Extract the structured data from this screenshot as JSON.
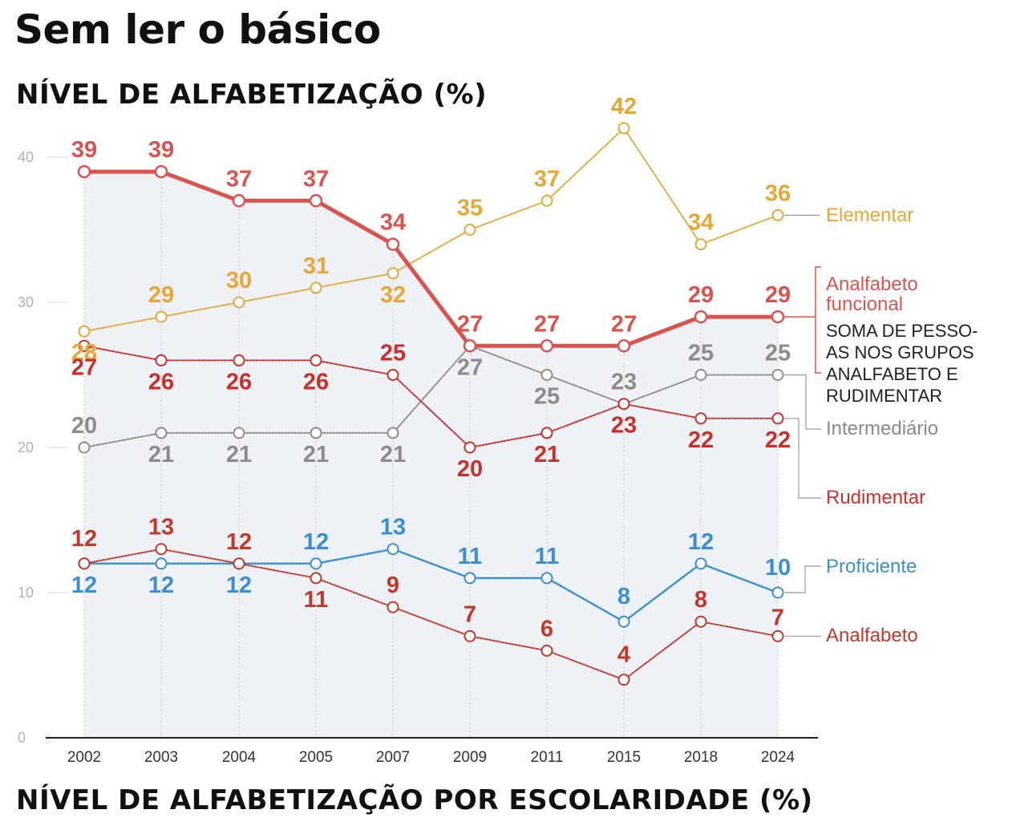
{
  "title": "Sem ler o básico",
  "subtitle": "NÍVEL DE ALFABETIZAÇÃO (%)",
  "bottom_title": "NÍVEL DE ALFABETIZAÇÃO POR ESCOLARIDADE (%)",
  "colors": {
    "elementar": "#e8a735",
    "funcional": "#d9534f",
    "rudimentar": "#c9302c",
    "intermediario": "#8c8c8c",
    "proficiente": "#3a8fd0",
    "analfabeto": "#c0392b",
    "area": "#eef1f5",
    "grid": "#c8d0d8",
    "axis": "#222222",
    "ytick": "#a9b4be"
  },
  "chart_data": {
    "type": "line",
    "title": "NÍVEL DE ALFABETIZAÇÃO (%)",
    "xlabel": "",
    "ylabel": "",
    "ylim": [
      0,
      42
    ],
    "yticks": [
      0,
      10,
      20,
      30,
      40
    ],
    "ytick_labels": [
      "0",
      "10",
      "20",
      "30",
      "40"
    ],
    "categories": [
      "2002",
      "2003",
      "2004",
      "2005",
      "2007",
      "2009",
      "2011",
      "2015",
      "2018",
      "2024"
    ],
    "series": [
      {
        "key": "elementar",
        "name": "Elementar",
        "values": [
          28,
          29,
          30,
          31,
          32,
          35,
          37,
          42,
          34,
          36
        ]
      },
      {
        "key": "funcional",
        "name": "Analfabeto funcional",
        "values": [
          39,
          39,
          37,
          37,
          34,
          27,
          27,
          27,
          29,
          29
        ]
      },
      {
        "key": "intermediario",
        "name": "Intermediário",
        "values": [
          20,
          21,
          21,
          21,
          21,
          27,
          25,
          23,
          25,
          25
        ]
      },
      {
        "key": "rudimentar",
        "name": "Rudimentar",
        "values": [
          27,
          26,
          26,
          26,
          25,
          20,
          21,
          23,
          22,
          22
        ]
      },
      {
        "key": "proficiente",
        "name": "Proficiente",
        "values": [
          12,
          12,
          12,
          12,
          13,
          11,
          11,
          8,
          12,
          10
        ]
      },
      {
        "key": "analfabeto",
        "name": "Analfabeto",
        "values": [
          12,
          13,
          12,
          11,
          9,
          7,
          6,
          4,
          8,
          7
        ]
      }
    ],
    "annotation": [
      "SOMA DE PESSO-",
      "AS NOS GRUPOS",
      "ANALFABETO E",
      "RUDIMENTAR"
    ],
    "grid": true,
    "legend": "right"
  }
}
